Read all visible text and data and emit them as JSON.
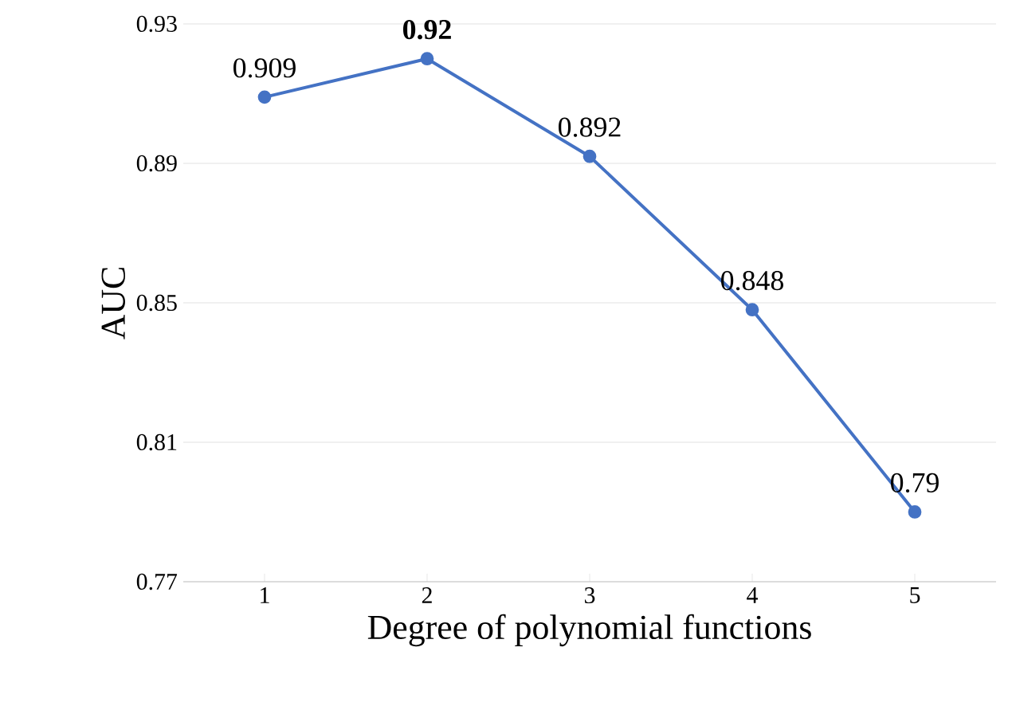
{
  "chart_data": {
    "type": "line",
    "xlabel": "Degree of polynomial functions",
    "ylabel": "AUC",
    "categories": [
      "1",
      "2",
      "3",
      "4",
      "5"
    ],
    "values": [
      0.909,
      0.92,
      0.892,
      0.848,
      0.79
    ],
    "value_labels": [
      "0.909",
      "**0.92**",
      "0.892",
      "0.848",
      "0.79"
    ],
    "color": "#4472c4",
    "marker": "circle",
    "line_style": "solid",
    "ylim": [
      0.77,
      0.93
    ],
    "yticks": [
      0.77,
      0.81,
      0.85,
      0.89,
      0.93
    ],
    "grid": "y"
  }
}
